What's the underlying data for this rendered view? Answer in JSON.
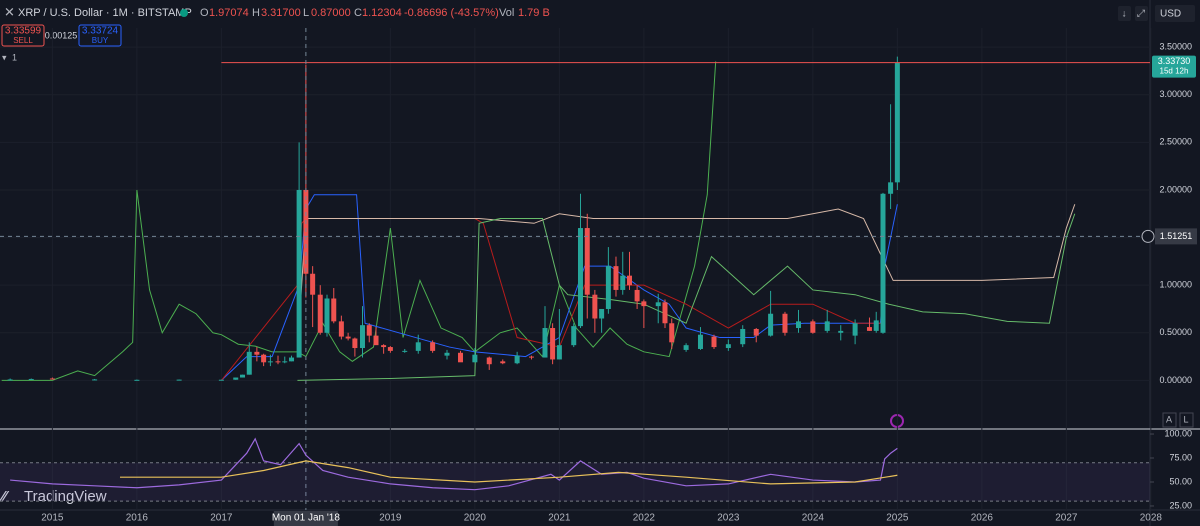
{
  "header": {
    "symbol": "XRP / U.S. Dollar · 1M · BITSTAMP",
    "o_label": "O",
    "open": "1.97074",
    "h_label": "H",
    "high": "3.31700",
    "l_label": "L",
    "low": "0.87000",
    "c_label": "C",
    "close": "1.12304",
    "change": "-0.86696 (-43.57%)",
    "vol_label": "Vol",
    "volume": "1.79 B",
    "sell_price": "3.33599",
    "sell": "SELL",
    "spread": "0.00125",
    "buy_price": "3.33724",
    "buy": "BUY",
    "indicator_count": "1",
    "currency": "USD",
    "auto": "A",
    "log": "L",
    "logo": "TradingView"
  },
  "chart_data": [
    {
      "type": "candlestick",
      "up_color": "#26a69a",
      "down_color": "#ef5350",
      "x": [
        2014.5,
        2014.75,
        2015.0,
        2015.5,
        2016.0,
        2016.5,
        2017.0,
        2017.17,
        2017.25,
        2017.33,
        2017.42,
        2017.5,
        2017.58,
        2017.67,
        2017.75,
        2017.83,
        2017.92,
        2018.0,
        2018.08,
        2018.17,
        2018.25,
        2018.33,
        2018.42,
        2018.5,
        2018.58,
        2018.67,
        2018.75,
        2018.83,
        2018.92,
        2019.0,
        2019.17,
        2019.33,
        2019.5,
        2019.67,
        2019.83,
        2020.0,
        2020.17,
        2020.33,
        2020.5,
        2020.67,
        2020.83,
        2020.92,
        2021.0,
        2021.17,
        2021.25,
        2021.33,
        2021.42,
        2021.5,
        2021.58,
        2021.67,
        2021.75,
        2021.83,
        2021.92,
        2022.0,
        2022.17,
        2022.25,
        2022.33,
        2022.5,
        2022.67,
        2022.83,
        2023.0,
        2023.17,
        2023.33,
        2023.5,
        2023.67,
        2023.83,
        2024.0,
        2024.17,
        2024.33,
        2024.5,
        2024.67,
        2024.75,
        2024.83,
        2024.92,
        2025.0
      ],
      "open": [
        0.01,
        0.01,
        0.02,
        0.01,
        0.006,
        0.007,
        0.006,
        0.007,
        0.03,
        0.06,
        0.3,
        0.27,
        0.19,
        0.2,
        0.19,
        0.2,
        0.24,
        2.0,
        1.12,
        0.9,
        0.5,
        0.86,
        0.62,
        0.46,
        0.44,
        0.34,
        0.58,
        0.47,
        0.37,
        0.35,
        0.31,
        0.31,
        0.4,
        0.26,
        0.29,
        0.19,
        0.24,
        0.2,
        0.18,
        0.25,
        0.24,
        0.55,
        0.22,
        0.37,
        0.57,
        1.6,
        0.9,
        0.65,
        0.75,
        1.2,
        0.95,
        1.1,
        0.95,
        0.83,
        0.78,
        0.82,
        0.6,
        0.32,
        0.33,
        0.46,
        0.34,
        0.38,
        0.54,
        0.47,
        0.7,
        0.55,
        0.62,
        0.52,
        0.5,
        0.47,
        0.56,
        0.52,
        0.5,
        1.96,
        2.08
      ],
      "high": [
        0.02,
        0.02,
        0.03,
        0.015,
        0.01,
        0.01,
        0.008,
        0.03,
        0.06,
        0.4,
        0.35,
        0.28,
        0.27,
        0.26,
        0.25,
        0.26,
        2.5,
        3.317,
        1.2,
        1.0,
        0.9,
        0.97,
        0.68,
        0.5,
        0.45,
        0.78,
        0.6,
        0.56,
        0.38,
        0.36,
        0.33,
        0.48,
        0.42,
        0.32,
        0.31,
        0.34,
        0.25,
        0.22,
        0.3,
        0.26,
        0.78,
        0.6,
        0.75,
        0.6,
        1.96,
        1.75,
        0.95,
        0.75,
        1.4,
        1.3,
        1.35,
        1.35,
        1.0,
        0.85,
        0.91,
        0.85,
        0.65,
        0.39,
        0.56,
        0.48,
        0.43,
        0.58,
        0.55,
        0.94,
        0.72,
        0.74,
        0.64,
        0.74,
        0.58,
        0.64,
        0.66,
        0.72,
        1.97,
        2.9,
        3.4
      ],
      "low": [
        0.005,
        0.005,
        0.01,
        0.008,
        0.005,
        0.006,
        0.006,
        0.006,
        0.03,
        0.06,
        0.2,
        0.15,
        0.15,
        0.17,
        0.18,
        0.2,
        0.24,
        0.87,
        0.56,
        0.48,
        0.46,
        0.6,
        0.43,
        0.42,
        0.25,
        0.24,
        0.4,
        0.4,
        0.28,
        0.29,
        0.29,
        0.28,
        0.29,
        0.22,
        0.21,
        0.19,
        0.11,
        0.17,
        0.17,
        0.22,
        0.24,
        0.17,
        0.22,
        0.35,
        0.55,
        0.65,
        0.5,
        0.5,
        0.7,
        0.88,
        0.9,
        0.95,
        0.75,
        0.55,
        0.6,
        0.55,
        0.33,
        0.3,
        0.32,
        0.33,
        0.31,
        0.35,
        0.4,
        0.46,
        0.47,
        0.5,
        0.49,
        0.5,
        0.42,
        0.38,
        0.52,
        0.5,
        0.49,
        1.8,
        2.0
      ],
      "close": [
        0.01,
        0.015,
        0.015,
        0.01,
        0.006,
        0.008,
        0.007,
        0.03,
        0.06,
        0.3,
        0.27,
        0.19,
        0.2,
        0.19,
        0.2,
        0.24,
        2.0,
        1.12,
        0.9,
        0.5,
        0.86,
        0.62,
        0.46,
        0.44,
        0.34,
        0.58,
        0.47,
        0.37,
        0.35,
        0.31,
        0.31,
        0.4,
        0.31,
        0.29,
        0.19,
        0.27,
        0.17,
        0.18,
        0.26,
        0.24,
        0.55,
        0.22,
        0.37,
        0.57,
        1.6,
        0.9,
        0.65,
        0.75,
        1.2,
        0.95,
        1.1,
        1.0,
        0.83,
        0.78,
        0.82,
        0.6,
        0.4,
        0.37,
        0.48,
        0.35,
        0.38,
        0.54,
        0.47,
        0.7,
        0.5,
        0.62,
        0.5,
        0.62,
        0.52,
        0.6,
        0.52,
        0.63,
        1.96,
        2.08,
        3.3373
      ],
      "overlays": [
        {
          "color": "#4caf50",
          "x": [
            2014.4,
            2015.0,
            2015.3,
            2015.5,
            2015.83,
            2015.95,
            2016.0,
            2016.15,
            2016.3,
            2016.5,
            2016.7,
            2016.9,
            2017.0,
            2017.2,
            2017.4,
            2017.6,
            2017.9,
            2018.0,
            2018.2,
            2018.4,
            2018.55,
            2018.8,
            2019.0,
            2019.15,
            2019.35,
            2019.6,
            2019.85,
            2020.0,
            2020.3,
            2020.5,
            2020.8,
            2021.0,
            2021.2,
            2021.4,
            2021.6,
            2021.8,
            2022.0,
            2022.3,
            2022.6,
            2022.75,
            2022.85
          ],
          "values": [
            0.0,
            0.0,
            0.1,
            0.05,
            0.3,
            0.4,
            2.0,
            0.95,
            0.5,
            0.8,
            0.7,
            0.5,
            0.48,
            0.38,
            0.36,
            0.3,
            0.3,
            0.25,
            0.6,
            0.3,
            0.2,
            0.35,
            1.6,
            0.45,
            1.05,
            0.55,
            0.45,
            0.3,
            0.5,
            0.55,
            0.25,
            1.0,
            0.55,
            0.35,
            0.55,
            0.38,
            0.3,
            0.25,
            1.2,
            1.95,
            3.35
          ]
        },
        {
          "color": "#2962ff",
          "x": [
            2017.0,
            2017.3,
            2017.6,
            2017.92,
            2018.0,
            2018.1,
            2018.6,
            2018.7,
            2019.3,
            2019.7,
            2020.0,
            2020.6,
            2021.0,
            2021.3,
            2021.6,
            2022.0,
            2022.3,
            2022.5,
            2022.9,
            2023.3,
            2023.5,
            2023.9,
            2024.3,
            2024.8,
            2024.85,
            2024.92,
            2025.0
          ],
          "values": [
            0.0,
            0.25,
            0.25,
            1.0,
            1.8,
            1.95,
            1.95,
            0.6,
            0.45,
            0.35,
            0.3,
            0.25,
            0.45,
            1.2,
            1.2,
            0.95,
            0.8,
            0.55,
            0.45,
            0.45,
            0.58,
            0.6,
            0.6,
            0.6,
            1.2,
            1.5,
            1.85
          ]
        },
        {
          "color": "#b71c1c",
          "x": [
            2017.0,
            2017.9,
            2017.95,
            2018.0,
            2019.0,
            2019.4,
            2020.0,
            2020.1,
            2020.5,
            2021.0,
            2021.3,
            2022.0,
            2022.5,
            2023.0,
            2023.5,
            2024.0,
            2024.5,
            2024.8
          ],
          "values": [
            0.0,
            1.0,
            1.65,
            1.7,
            1.7,
            1.7,
            1.7,
            1.65,
            0.45,
            0.35,
            1.0,
            1.0,
            0.8,
            0.55,
            0.8,
            0.8,
            0.6,
            0.6
          ]
        },
        {
          "color": "#d7b9a8",
          "x": [
            2017.9,
            2018.0,
            2019.0,
            2019.95,
            2020.05,
            2020.7,
            2021.0,
            2021.4,
            2022.0,
            2022.5,
            2023.0,
            2023.7,
            2024.0,
            2024.3,
            2024.6,
            2024.95,
            2026.0,
            2026.85,
            2027.0,
            2027.1
          ],
          "values": [
            0.3,
            1.7,
            1.7,
            1.7,
            1.7,
            1.65,
            1.75,
            1.7,
            1.7,
            1.7,
            1.7,
            1.7,
            1.75,
            1.8,
            1.7,
            1.05,
            1.05,
            1.08,
            1.6,
            1.85
          ]
        },
        {
          "color": "#66bb6a",
          "x": [
            2017.9,
            2019.0,
            2020.0,
            2020.05,
            2020.3,
            2020.8,
            2021.0,
            2021.1,
            2021.6,
            2022.0,
            2022.5,
            2022.8,
            2023.3,
            2023.7,
            2024.0,
            2024.5,
            2024.9,
            2025.3,
            2025.8,
            2026.3,
            2026.8,
            2027.0,
            2027.1
          ],
          "values": [
            0.0,
            0.02,
            0.05,
            1.65,
            1.7,
            1.7,
            1.0,
            0.9,
            0.85,
            0.8,
            0.6,
            1.3,
            0.9,
            1.2,
            0.95,
            0.9,
            0.8,
            0.72,
            0.7,
            0.62,
            0.6,
            1.5,
            1.75
          ]
        }
      ],
      "last_price": {
        "value": 3.3373,
        "label": "3.33730"
      },
      "countdown": "15d 12h",
      "price_line_from": 2017.0,
      "crosshair": {
        "price": 1.51251,
        "x": 2018.0
      },
      "xlim": [
        2014.38,
        2027.99
      ],
      "xticks": [
        2015,
        2016,
        2017,
        {
          "value": 2018,
          "label": "Mon 01 Jan '18"
        },
        2019,
        2020,
        2021,
        2022,
        2023,
        2024,
        2025,
        2026,
        2027,
        2028
      ],
      "ylim": [
        -0.5,
        3.68
      ],
      "yticks": [
        {
          "value": 0,
          "label": "0.00000"
        },
        {
          "value": 0.5,
          "label": "0.50000"
        },
        {
          "value": 1,
          "label": "1.00000"
        },
        {
          "value": 1.5,
          "label": "1.50000"
        },
        {
          "value": 2,
          "label": "2.00000"
        },
        {
          "value": 2.5,
          "label": "2.50000"
        },
        {
          "value": 3,
          "label": "3.00000"
        },
        {
          "value": 3.5,
          "label": "3.50000"
        }
      ]
    },
    {
      "type": "line",
      "band": [
        30,
        70
      ],
      "band_color": "#7e57c2",
      "series": [
        {
          "color": "#9c6ade",
          "x": [
            2014.5,
            2015.0,
            2015.5,
            2016.0,
            2016.5,
            2017.0,
            2017.3,
            2017.4,
            2017.5,
            2017.7,
            2017.92,
            2018.0,
            2018.2,
            2018.5,
            2019.0,
            2019.5,
            2020.0,
            2020.4,
            2020.9,
            2021.0,
            2021.25,
            2021.5,
            2021.8,
            2022.0,
            2022.5,
            2023.0,
            2023.5,
            2024.0,
            2024.5,
            2024.8,
            2024.85,
            2024.92,
            2025.0
          ],
          "values": [
            52,
            48,
            46,
            44,
            47,
            52,
            80,
            95,
            72,
            68,
            90,
            78,
            62,
            55,
            48,
            44,
            42,
            46,
            58,
            52,
            72,
            58,
            60,
            54,
            46,
            48,
            58,
            52,
            50,
            52,
            74,
            80,
            85
          ]
        },
        {
          "color": "#e8c15a",
          "x": [
            2015.8,
            2017.0,
            2017.5,
            2018.0,
            2018.5,
            2019.0,
            2020.0,
            2021.0,
            2021.7,
            2022.5,
            2023.5,
            2024.5,
            2025.0
          ],
          "values": [
            55,
            55,
            62,
            72,
            65,
            55,
            50,
            55,
            60,
            55,
            48,
            50,
            57
          ]
        }
      ],
      "xlim": [
        2014.38,
        2027.99
      ],
      "ylim": [
        20.8,
        104.2
      ],
      "yticks": [
        {
          "value": 100,
          "label": "100.00"
        },
        {
          "value": 75,
          "label": "75.00"
        },
        {
          "value": 50,
          "label": "50.00"
        },
        {
          "value": 25,
          "label": "25.00"
        }
      ]
    }
  ]
}
